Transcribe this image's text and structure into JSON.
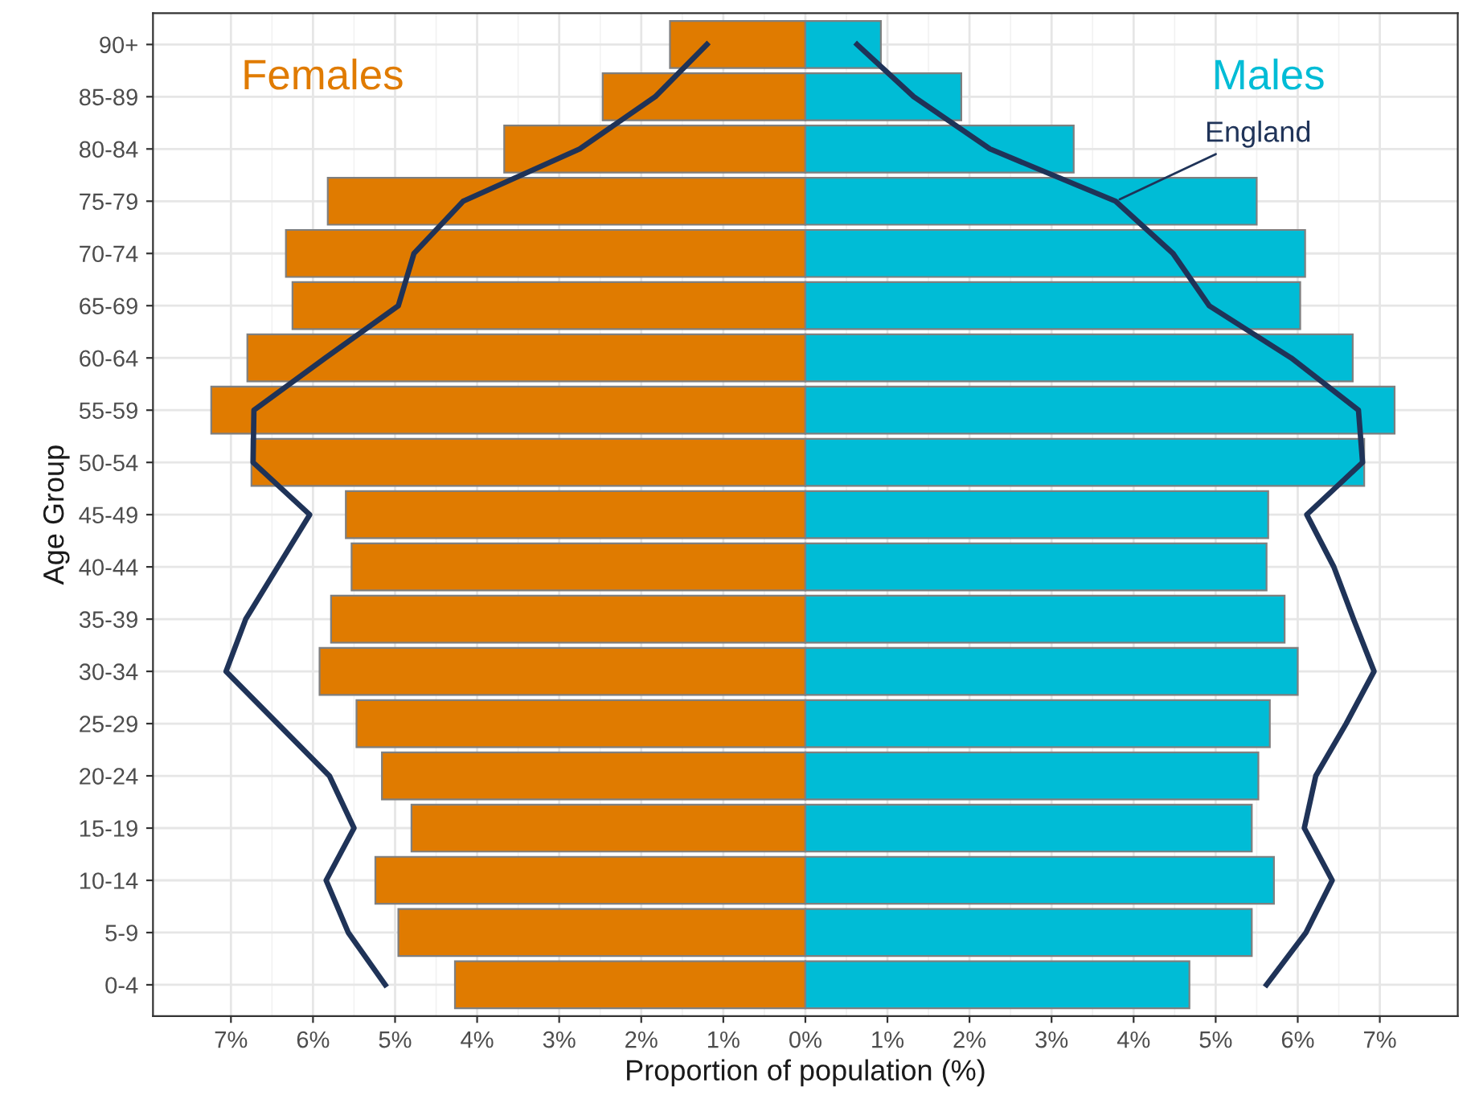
{
  "chart_data": {
    "type": "bar",
    "orientation": "horizontal",
    "xlabel": "Proportion of population (%)",
    "ylabel": "Age Group",
    "categories": [
      "90+",
      "85-89",
      "80-84",
      "75-79",
      "70-74",
      "65-69",
      "60-64",
      "55-59",
      "50-54",
      "45-49",
      "40-44",
      "35-39",
      "30-34",
      "25-29",
      "20-24",
      "15-19",
      "10-14",
      "5-9",
      "0-4"
    ],
    "series": [
      {
        "name": "Females",
        "color": "#e07b00",
        "values": [
          -1.65,
          -2.47,
          -3.67,
          -5.82,
          -6.33,
          -6.25,
          -6.8,
          -7.24,
          -6.75,
          -5.6,
          -5.53,
          -5.78,
          -5.92,
          -5.47,
          -5.16,
          -4.8,
          -5.24,
          -4.96,
          -4.27
        ]
      },
      {
        "name": "Males",
        "color": "#00bcd6",
        "values": [
          0.92,
          1.9,
          3.27,
          5.5,
          6.09,
          6.03,
          6.67,
          7.18,
          6.81,
          5.64,
          5.62,
          5.84,
          6.0,
          5.66,
          5.52,
          5.44,
          5.71,
          5.44,
          4.68
        ]
      },
      {
        "type": "line",
        "color": "#1f3358",
        "values": [
          -1.2,
          -1.83,
          -2.75,
          -4.17,
          -4.77,
          -4.96,
          -5.85,
          -6.72,
          -6.73,
          -6.04,
          -6.43,
          -6.82,
          -7.06,
          -6.43,
          -5.8,
          -5.5,
          -5.84,
          -5.57,
          -5.12
        ]
      },
      {
        "name": "England",
        "type": "line",
        "color": "#1f3358",
        "values": [
          0.63,
          1.32,
          2.25,
          3.78,
          4.48,
          4.92,
          5.92,
          6.74,
          6.79,
          6.11,
          6.44,
          6.68,
          6.93,
          6.59,
          6.22,
          6.08,
          6.42,
          6.1,
          5.62
        ]
      }
    ],
    "xlim": [
      -7.95,
      7.95
    ],
    "xticks": [
      {
        "value": -7,
        "label": "7%"
      },
      {
        "value": -6,
        "label": "6%"
      },
      {
        "value": -5,
        "label": "5%"
      },
      {
        "value": -4,
        "label": "4%"
      },
      {
        "value": -3,
        "label": "3%"
      },
      {
        "value": -2,
        "label": "2%"
      },
      {
        "value": -1,
        "label": "1%"
      },
      {
        "value": 0,
        "label": "0%"
      },
      {
        "value": 1,
        "label": "1%"
      },
      {
        "value": 2,
        "label": "2%"
      },
      {
        "value": 3,
        "label": "3%"
      },
      {
        "value": 4,
        "label": "4%"
      },
      {
        "value": 5,
        "label": "5%"
      },
      {
        "value": 6,
        "label": "6%"
      },
      {
        "value": 7,
        "label": "7%"
      }
    ],
    "stacked": true,
    "grid": true,
    "legend": false
  }
}
